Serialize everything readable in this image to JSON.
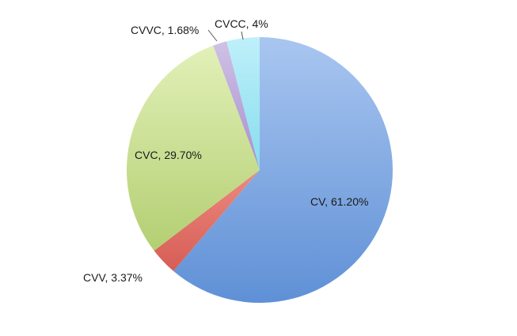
{
  "chart_data": {
    "type": "pie",
    "categories": [
      "CV",
      "CVV",
      "CVC",
      "CVVC",
      "CVCC"
    ],
    "values": [
      61.2,
      3.37,
      29.7,
      1.68,
      4
    ],
    "labels": [
      "CV, 61.20%",
      "CVV, 3.37%",
      "CVC, 29.70%",
      "CVVC, 1.68%",
      "CVCC, 4%"
    ],
    "colors": [
      "#7aa6e0",
      "#e0736a",
      "#c8de8e",
      "#b9a7d8",
      "#9fe4f2"
    ],
    "start": "12 o'clock",
    "direction": "clockwise",
    "legend": "none"
  }
}
